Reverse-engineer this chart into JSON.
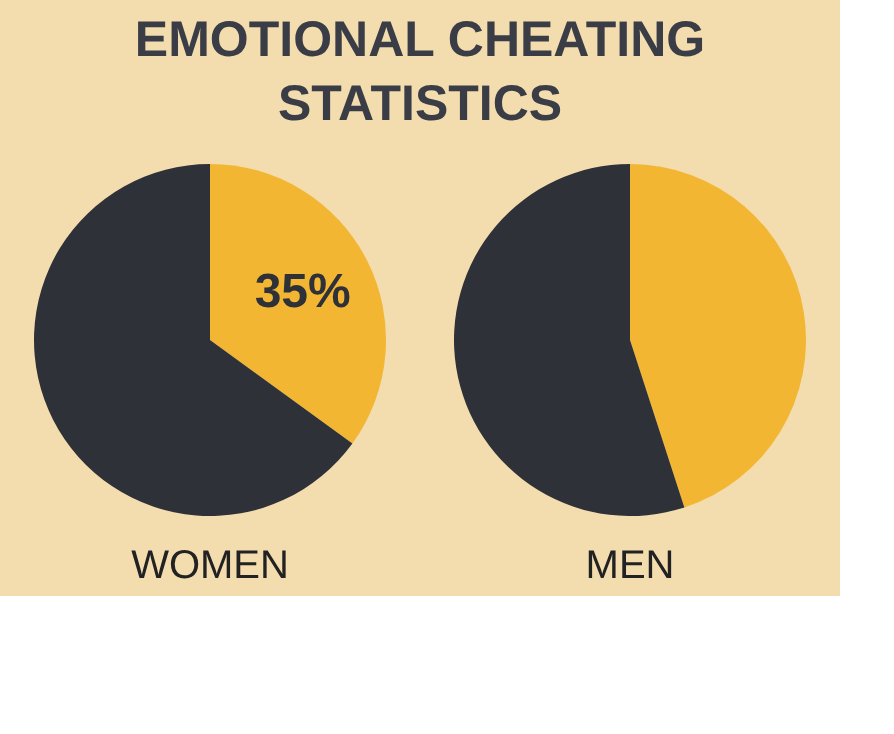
{
  "chart_data": [
    {
      "type": "pie",
      "title": "EMOTIONAL CHEATING STATISTICS",
      "xlabel": "WOMEN",
      "categories": [
        null,
        null
      ],
      "values": [
        35,
        65
      ],
      "colors": [
        "#f2b632",
        "#2f3139"
      ],
      "value_labels": [
        "35%",
        null
      ]
    },
    {
      "type": "pie",
      "xlabel": "MEN",
      "categories": [
        null,
        null
      ],
      "values": [
        45,
        55
      ],
      "colors": [
        "#f2b632",
        "#2f3139"
      ]
    }
  ]
}
